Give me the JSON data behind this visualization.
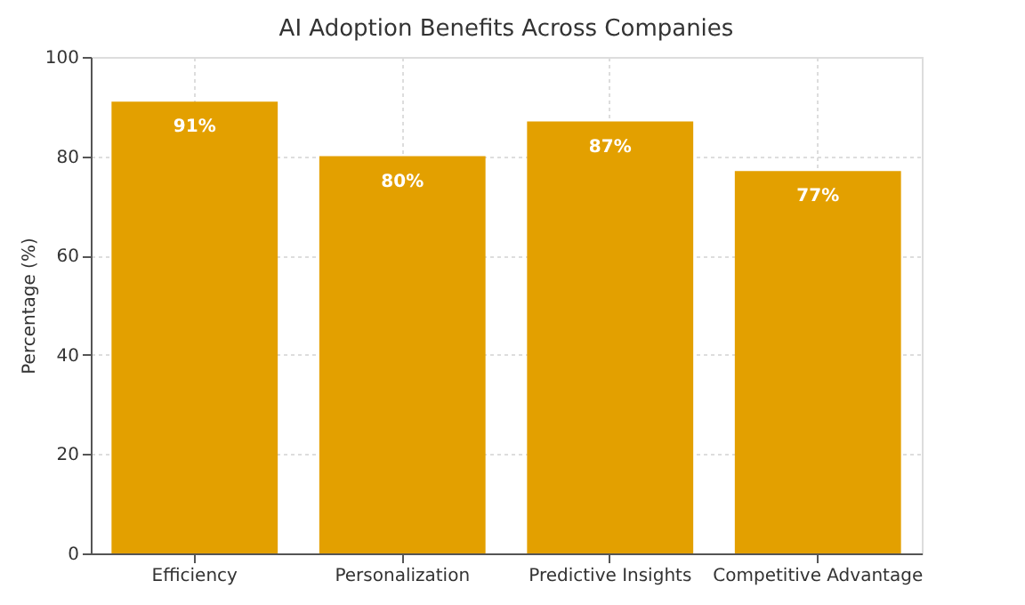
{
  "chart_data": {
    "type": "bar",
    "title": "AI Adoption Benefits Across Companies",
    "ylabel": "Percentage (%)",
    "categories": [
      "Efficiency",
      "Personalization",
      "Predictive Insights",
      "Competitive Advantage"
    ],
    "values": [
      91,
      80,
      87,
      77
    ],
    "value_labels": [
      "91%",
      "80%",
      "87%",
      "77%"
    ],
    "color": "#e3a000",
    "ylim": [
      0,
      100
    ],
    "yticks": [
      0,
      20,
      40,
      60,
      80,
      100
    ],
    "grid": true
  }
}
